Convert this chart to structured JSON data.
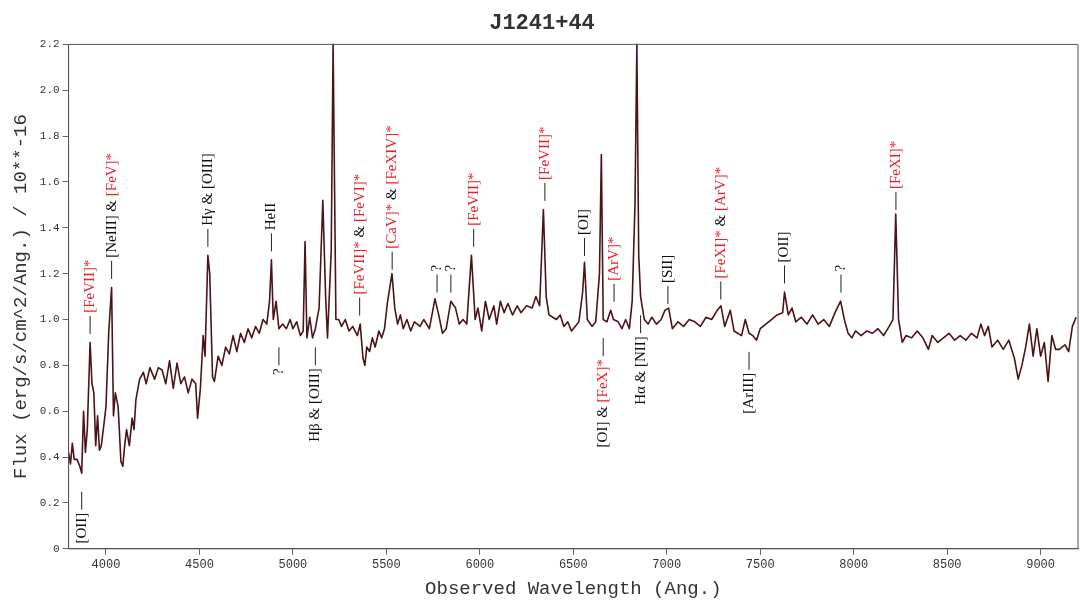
{
  "chart_data": {
    "type": "line",
    "title": "J1241+44",
    "xlabel": "Observed Wavelength (Ang.)",
    "ylabel": "Flux (erg/s/cm^2/Ang.) / 10**-16",
    "xlim": [
      3800,
      9200
    ],
    "xticks": [
      4000,
      4500,
      5000,
      5500,
      6000,
      6500,
      7000,
      7500,
      8000,
      8500,
      9000
    ],
    "ylim": [
      0,
      2.2
    ],
    "yticks": [
      0,
      {
        "value": 0.2,
        "label": "0.2"
      },
      {
        "value": 0.4,
        "label": "0.4"
      },
      {
        "value": 0.6,
        "label": "0.6"
      },
      {
        "value": 0.8,
        "label": "0.8"
      },
      {
        "value": 1,
        "label": "1.0"
      },
      {
        "value": 1.2,
        "label": "1.2"
      },
      {
        "value": 1.4,
        "label": "1.4"
      },
      {
        "value": 1.6,
        "label": "1.6"
      },
      {
        "value": 1.8,
        "label": "1.8"
      },
      {
        "value": 2,
        "label": "2.0"
      },
      {
        "value": 2.2,
        "label": "2.2"
      }
    ],
    "grid": false,
    "legend": false,
    "marker": "none",
    "line_style": "solid",
    "x": [
      3800,
      3810,
      3820,
      3830,
      3845,
      3860,
      3870,
      3880,
      3890,
      3900,
      3915,
      3925,
      3935,
      3945,
      3955,
      3965,
      3975,
      3990,
      4000,
      4015,
      4030,
      4040,
      4050,
      4065,
      4080,
      4090,
      4100,
      4110,
      4125,
      4140,
      4150,
      4160,
      4180,
      4200,
      4215,
      4235,
      4260,
      4280,
      4300,
      4320,
      4340,
      4360,
      4380,
      4400,
      4420,
      4440,
      4460,
      4480,
      4490,
      4505,
      4520,
      4530,
      4545,
      4555,
      4570,
      4580,
      4600,
      4620,
      4640,
      4660,
      4680,
      4700,
      4720,
      4740,
      4760,
      4780,
      4800,
      4820,
      4840,
      4860,
      4875,
      4885,
      4895,
      4910,
      4925,
      4945,
      4965,
      4985,
      5000,
      5020,
      5040,
      5055,
      5065,
      5075,
      5090,
      5105,
      5120,
      5140,
      5160,
      5175,
      5185,
      5205,
      5215,
      5230,
      5245,
      5260,
      5280,
      5300,
      5320,
      5345,
      5360,
      5375,
      5385,
      5395,
      5410,
      5425,
      5440,
      5460,
      5475,
      5490,
      5505,
      5530,
      5545,
      5560,
      5575,
      5590,
      5610,
      5630,
      5650,
      5680,
      5700,
      5730,
      5760,
      5780,
      5800,
      5820,
      5845,
      5870,
      5890,
      5910,
      5930,
      5955,
      5975,
      5990,
      6010,
      6030,
      6050,
      6075,
      6090,
      6110,
      6130,
      6150,
      6175,
      6200,
      6220,
      6250,
      6280,
      6300,
      6320,
      6340,
      6355,
      6370,
      6390,
      6410,
      6430,
      6450,
      6470,
      6490,
      6510,
      6530,
      6550,
      6560,
      6575,
      6600,
      6620,
      6640,
      6650,
      6660,
      6680,
      6700,
      6715,
      6740,
      6760,
      6780,
      6800,
      6815,
      6830,
      6840,
      6850,
      6860,
      6880,
      6900,
      6920,
      6945,
      6970,
      6990,
      7010,
      7030,
      7060,
      7090,
      7120,
      7150,
      7180,
      7210,
      7240,
      7270,
      7290,
      7310,
      7340,
      7360,
      7380,
      7400,
      7420,
      7440,
      7460,
      7480,
      7500,
      7530,
      7560,
      7590,
      7620,
      7630,
      7650,
      7670,
      7690,
      7720,
      7750,
      7780,
      7810,
      7840,
      7870,
      7900,
      7930,
      7950,
      7970,
      7990,
      8010,
      8040,
      8070,
      8100,
      8130,
      8160,
      8190,
      8210,
      8225,
      8240,
      8260,
      8280,
      8310,
      8340,
      8370,
      8400,
      8420,
      8450,
      8480,
      8510,
      8540,
      8570,
      8600,
      8630,
      8660,
      8680,
      8700,
      8720,
      8740,
      8770,
      8800,
      8830,
      8860,
      8880,
      8900,
      8920,
      8940,
      8960,
      8980,
      9000,
      9020,
      9040,
      9060,
      9080,
      9100,
      9130,
      9150,
      9170,
      9190
    ],
    "series": [
      {
        "color": "#4a1418",
        "values": [
          0.42,
          0.37,
          0.46,
          0.39,
          0.39,
          0.36,
          0.33,
          0.6,
          0.42,
          0.52,
          0.9,
          0.72,
          0.68,
          0.45,
          0.58,
          0.43,
          0.45,
          0.55,
          0.62,
          0.95,
          1.14,
          0.58,
          0.68,
          0.62,
          0.38,
          0.36,
          0.45,
          0.52,
          0.45,
          0.57,
          0.52,
          0.65,
          0.74,
          0.77,
          0.72,
          0.79,
          0.74,
          0.79,
          0.78,
          0.72,
          0.82,
          0.7,
          0.81,
          0.72,
          0.75,
          0.68,
          0.74,
          0.72,
          0.57,
          0.7,
          0.93,
          0.84,
          1.28,
          1.2,
          0.75,
          0.73,
          0.84,
          0.8,
          0.88,
          0.85,
          0.93,
          0.86,
          0.94,
          0.9,
          0.96,
          0.92,
          0.97,
          0.94,
          1.0,
          0.98,
          1.08,
          1.26,
          1.0,
          1.08,
          0.96,
          0.98,
          0.96,
          1.0,
          0.96,
          0.99,
          0.93,
          0.95,
          1.34,
          0.92,
          1.01,
          0.92,
          0.96,
          1.05,
          1.52,
          1.1,
          0.92,
          1.3,
          2.2,
          1.0,
          1.0,
          0.97,
          1.0,
          0.95,
          0.97,
          0.93,
          0.98,
          0.83,
          0.8,
          0.88,
          0.86,
          0.92,
          0.88,
          0.95,
          0.92,
          0.96,
          1.07,
          1.2,
          1.05,
          0.98,
          1.02,
          0.96,
          1.0,
          0.95,
          0.99,
          0.97,
          1.0,
          0.96,
          1.09,
          1.02,
          0.94,
          0.96,
          1.08,
          1.05,
          0.98,
          1.0,
          0.98,
          1.28,
          1.0,
          1.05,
          0.95,
          1.08,
          1.0,
          1.06,
          0.98,
          1.08,
          1.03,
          1.07,
          1.02,
          1.06,
          1.03,
          1.06,
          1.05,
          1.1,
          1.06,
          1.48,
          1.1,
          1.02,
          1.01,
          1.0,
          1.02,
          0.97,
          0.99,
          0.95,
          0.97,
          0.99,
          1.12,
          1.25,
          1.0,
          0.97,
          0.99,
          1.2,
          1.72,
          1.0,
          0.99,
          1.04,
          1.0,
          0.99,
          0.96,
          1.0,
          0.96,
          1.08,
          1.5,
          2.2,
          1.28,
          1.1,
          1.0,
          0.98,
          1.01,
          0.98,
          1.0,
          1.04,
          1.05,
          0.96,
          0.99,
          0.97,
          1.0,
          0.99,
          0.97,
          1.01,
          1.0,
          1.04,
          1.06,
          0.97,
          1.04,
          0.95,
          0.94,
          0.93,
          1.0,
          0.94,
          0.93,
          0.91,
          0.96,
          0.98,
          1.0,
          1.02,
          1.03,
          1.12,
          1.02,
          1.05,
          0.99,
          1.01,
          0.98,
          1.02,
          0.98,
          1.0,
          0.97,
          1.03,
          1.08,
          1.0,
          0.94,
          0.92,
          0.95,
          0.93,
          0.95,
          0.94,
          0.96,
          0.93,
          0.97,
          1.0,
          1.46,
          1.0,
          0.9,
          0.93,
          0.92,
          0.95,
          0.92,
          0.87,
          0.93,
          0.9,
          0.92,
          0.94,
          0.91,
          0.93,
          0.91,
          0.94,
          0.92,
          0.98,
          0.93,
          0.97,
          0.88,
          0.91,
          0.87,
          0.91,
          0.83,
          0.74,
          0.8,
          0.88,
          0.98,
          0.84,
          0.96,
          0.84,
          0.9,
          0.73,
          0.93,
          0.87,
          0.87,
          0.89,
          0.86,
          0.97,
          1.01
        ]
      }
    ],
    "annotations": [
      {
        "text": "[OII]",
        "x": 3870,
        "y": 0.31
      },
      {
        "text": "[FeVII]*",
        "x": 3915,
        "y": 0.92
      },
      {
        "text": "[NeIII] & [FeV]*",
        "x": 4030,
        "y": 1.16
      },
      {
        "text": "Hγ & [OIII]",
        "x": 4545,
        "y": 1.3
      },
      {
        "text": "HeII",
        "x": 4885,
        "y": 1.28
      },
      {
        "text": "?",
        "x": 4925,
        "y": 0.94
      },
      {
        "text": "Hβ & [OIII]",
        "x": 5120,
        "y": 0.94
      },
      {
        "text": "[FeVII]* & [FeVI]*",
        "x": 5357,
        "y": 1.0
      },
      {
        "text": "[CaV]* & [FeXIV]*",
        "x": 5531,
        "y": 1.2
      },
      {
        "text": "?",
        "x": 5771,
        "y": 1.1
      },
      {
        "text": "?",
        "x": 5845,
        "y": 1.1
      },
      {
        "text": "[FeVII]*",
        "x": 5967,
        "y": 1.3
      },
      {
        "text": "[FeVII]*",
        "x": 6348,
        "y": 1.5
      },
      {
        "text": "[OI]",
        "x": 6560,
        "y": 1.26
      },
      {
        "text": "[OI] & [FeX]*",
        "x": 6660,
        "y": 0.98
      },
      {
        "text": "[ArV]*",
        "x": 6718,
        "y": 1.06
      },
      {
        "text": "Hα & [NII]",
        "x": 6860,
        "y": 1.08
      },
      {
        "text": "[SII]",
        "x": 7006,
        "y": 1.05
      },
      {
        "text": "[FeXI]* & [ArV]*",
        "x": 7289,
        "y": 1.07
      },
      {
        "text": "[ArIII]",
        "x": 7440,
        "y": 0.92
      },
      {
        "text": "[OII]",
        "x": 7630,
        "y": 1.14
      },
      {
        "text": "?",
        "x": 7932,
        "y": 1.1
      },
      {
        "text": "[FeXI]*",
        "x": 8226,
        "y": 1.46
      }
    ]
  }
}
